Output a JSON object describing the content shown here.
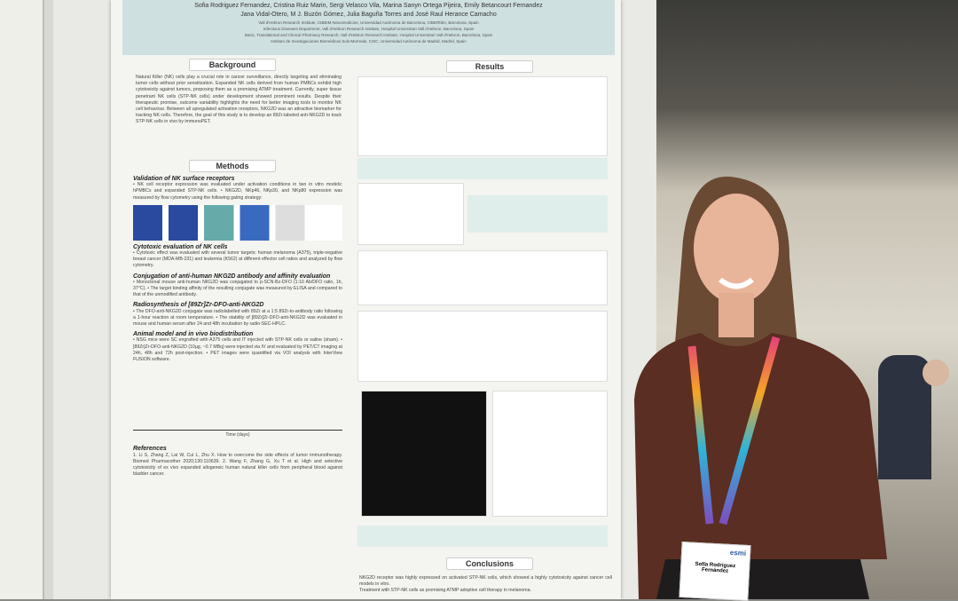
{
  "poster": {
    "authors_line1": "Sofia Rodriguez Fernandez, Cristina Ruiz Marin, Sergi Velasco Vila, Marina Sanyn Ortega Pijeira, Emily Betancourt Fernandez",
    "authors_line2": "Jana Vidal-Otero, M J. Buzón Gómez, Julia Baguña Torres and José Raul Herance Camacho",
    "affiliations": [
      "Vall d'Hebron Research Institute, CIBBIM-Nanomedicine, Universidad Autónoma de Barcelona, CIBERbbn, Barcelona, Spain",
      "Infectious Diseases Department, Vall d'Hebron Research Institute, Hospital Universitari Vall d'Hebron, Barcelona, Spain",
      "Basic, Translational and Clinical Pharmacy Research, Vall d'Hebron Research Institute, Hospital Universitari Vall d'Hebron, Barcelona, Spain",
      "Instituto de Investigaciones Biomédicas Sols-Morreale, CSIC, Universidad Autónoma de Madrid, Madrid, Spain"
    ],
    "background_title": "Background",
    "background_text": "Natural Killer (NK) cells play a crucial role in cancer surveillance, directly targeting and eliminating tumor cells without prior sensitization. Expanded NK cells derived from human PMBCs exhibit high cytotoxicity against tumors, proposing them as a promising ATMP treatment. Currently, super tissue penetrant NK cells (STP-NK cells) under development showed prominent results. Despite their therapeutic promise, outcome variability highlights the need for better imaging tools to monitor NK cell behaviour. Between all upregulated activation receptors, NKG2D was an attractive biomarker for tracking NK cells. Therefore, the goal of this study is to develop an 89Zr-labeled anti-NKG2D to track STP-NK cells in vivo by immunoPET.",
    "methods_title": "Methods",
    "methods": [
      {
        "heading": "Validation of NK surface receptors",
        "text": "• NK cell receptor expression was evaluated under activation conditions in two in vitro models: hPMBCs and expanded STP-NK cells. • NKG2D, NKp46, NKp30, and NKp80 expression was measured by flow cytometry using the following gating strategy:"
      },
      {
        "heading": "Cytotoxic evaluation of NK cells",
        "text": "• Cytotoxic effect was evaluated with several tumor targets: human melanoma (A375), triple-negative breast cancer (MDA-MB-231) and leukemia (K562) at different effector cell ratios and analyzed by flow cytometry."
      },
      {
        "heading": "Conjugation of anti-human NKG2D antibody and affinity evaluation",
        "text": "• Monoclonal mouse anti-human NKG2D was conjugated to p-SCN-Bz-DFO (1:10 Ab/DFO ratio, 1h, 37°C). • The target binding affinity of the resulting conjugate was measured by ELISA and compared to that of the unmodified antibody."
      },
      {
        "heading": "Radiosynthesis of [89Zr]Zr-DFO-anti-NKG2D",
        "text": "• The DFO-anti-NKG2D conjugate was radiolabelled with 89Zr at a 1:5 89Zr-to-antibody ratio following a 1-hour reaction at room temperature. • The stability of [89Zr]Zr-DFO-anti-NKG2D was evaluated in mouse and human serum after 24 and 48h incubation by radio-SEC-HPLC."
      },
      {
        "heading": "Animal model and in vivo biodistribution",
        "text": "• NSG mice were SC engrafted with A375 cells and IT injected with STP-NK cells or saline (sham). • [89Zr]Zr-DFO-anti-NKG2D (10µg, ~0.7 MBq) were injected via IV and evaluated by PET/CT imaging at 24h, 48h and 72h post-injection. • PET images were quantified via VOI analysis with InterView FUSION software."
      }
    ],
    "timeline_label": "Time (days)",
    "references_title": "References",
    "references_text": "1. Li S, Zhang Z, Lai W, Cui L, Zhu X. How to overcome the side effects of tumor immunotherapy. Biomed Pharmacother 2020;130:110639. 2. Wang F, Zhang G, Xu T et al. High and selective cytotoxicity of ex vivo expanded allogeneic human natural killer cells from peripheral blood against bladder cancer.",
    "results_title": "Results",
    "conclusions_title": "Conclusions",
    "conclusions": [
      "NKG2D receptor was highly expressed on activated STP-NK cells, which showed a highly cytotoxicity against cancer cell models in vitro.",
      "Treatment with STP-NK cells as promising ATMP adoptive cell therapy in melanoma."
    ]
  },
  "badge": {
    "name": "Sofía Rodriguez Fernández",
    "org": "esmi"
  },
  "colors": {
    "poster_header": "#cfe0e0",
    "sweater": "#5a2e22",
    "lanyard": "rainbow"
  }
}
